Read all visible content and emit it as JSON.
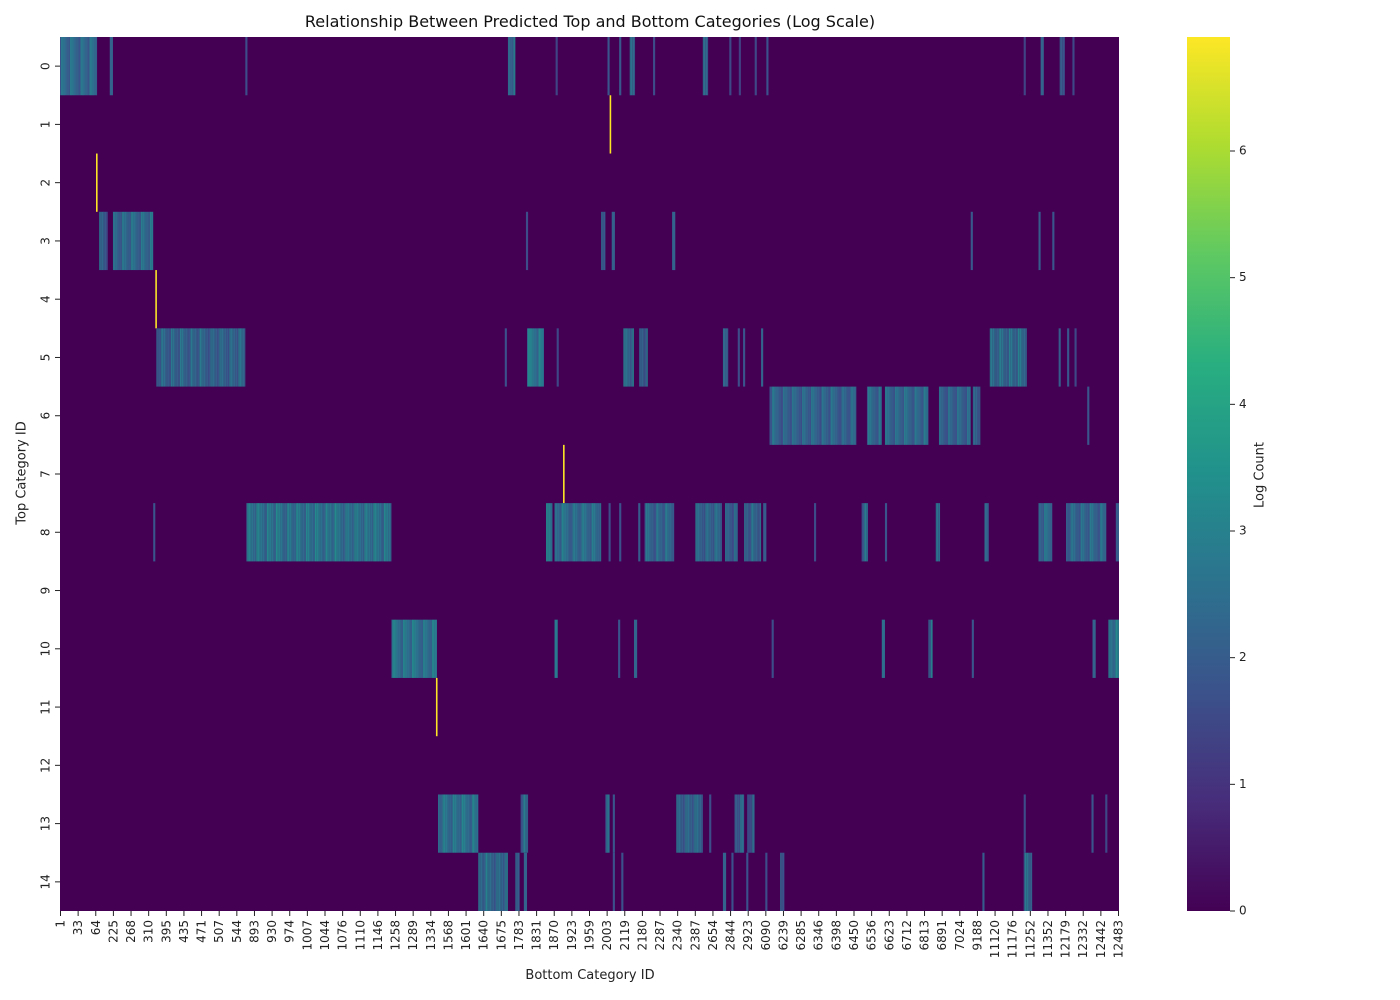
{
  "chart_data": {
    "type": "heatmap",
    "title": "Relationship Between Predicted Top and Bottom Categories (Log Scale)",
    "xlabel": "Bottom Category ID",
    "ylabel": "Top Category ID",
    "colorbar_label": "Log Count",
    "colormap": "viridis",
    "colorbar_range": [
      0,
      6.9
    ],
    "colorbar_ticks": [
      "0",
      "1",
      "2",
      "3",
      "4",
      "5",
      "6"
    ],
    "y_categories": [
      "0",
      "1",
      "2",
      "3",
      "4",
      "5",
      "6",
      "7",
      "8",
      "9",
      "10",
      "11",
      "12",
      "13",
      "14"
    ],
    "x_tick_labels": [
      "1",
      "33",
      "64",
      "225",
      "268",
      "310",
      "395",
      "435",
      "471",
      "507",
      "544",
      "893",
      "930",
      "974",
      "1007",
      "1044",
      "1076",
      "1110",
      "1146",
      "1258",
      "1289",
      "1334",
      "1568",
      "1601",
      "1640",
      "1675",
      "1783",
      "1831",
      "1870",
      "1923",
      "1959",
      "2003",
      "2119",
      "2180",
      "2287",
      "2340",
      "2387",
      "2654",
      "2844",
      "2923",
      "6090",
      "6239",
      "6285",
      "6346",
      "6398",
      "6450",
      "6536",
      "6623",
      "6712",
      "6813",
      "6891",
      "7024",
      "9188",
      "11120",
      "11176",
      "11252",
      "11352",
      "12179",
      "12332",
      "12442",
      "12483"
    ],
    "cell_value_note": "cells are log counts; background cells are 0",
    "bands": [
      {
        "row": 0,
        "x_start": 0.0,
        "x_end": 0.035,
        "value": 2.3
      },
      {
        "row": 0,
        "x_start": 0.047,
        "x_end": 0.05,
        "value": 2.2
      },
      {
        "row": 0,
        "x_start": 0.175,
        "x_end": 0.177,
        "value": 1.6
      },
      {
        "row": 0,
        "x_start": 0.423,
        "x_end": 0.43,
        "value": 2.4
      },
      {
        "row": 0,
        "x_start": 0.468,
        "x_end": 0.47,
        "value": 1.4
      },
      {
        "row": 0,
        "x_start": 0.517,
        "x_end": 0.519,
        "value": 1.8
      },
      {
        "row": 0,
        "x_start": 0.528,
        "x_end": 0.53,
        "value": 1.9
      },
      {
        "row": 0,
        "x_start": 0.538,
        "x_end": 0.543,
        "value": 2.2
      },
      {
        "row": 0,
        "x_start": 0.56,
        "x_end": 0.562,
        "value": 1.6
      },
      {
        "row": 0,
        "x_start": 0.607,
        "x_end": 0.612,
        "value": 2.5
      },
      {
        "row": 0,
        "x_start": 0.632,
        "x_end": 0.634,
        "value": 1.5
      },
      {
        "row": 0,
        "x_start": 0.641,
        "x_end": 0.643,
        "value": 1.3
      },
      {
        "row": 0,
        "x_start": 0.656,
        "x_end": 0.658,
        "value": 1.5
      },
      {
        "row": 0,
        "x_start": 0.667,
        "x_end": 0.669,
        "value": 1.7
      },
      {
        "row": 0,
        "x_start": 0.91,
        "x_end": 0.912,
        "value": 1.4
      },
      {
        "row": 0,
        "x_start": 0.926,
        "x_end": 0.929,
        "value": 2.2
      },
      {
        "row": 0,
        "x_start": 0.944,
        "x_end": 0.949,
        "value": 2.1
      },
      {
        "row": 0,
        "x_start": 0.956,
        "x_end": 0.958,
        "value": 1.5
      },
      {
        "row": 1,
        "x_start": 0.519,
        "x_end": 0.5205,
        "value": 6.9
      },
      {
        "row": 2,
        "x_start": 0.034,
        "x_end": 0.0355,
        "value": 6.9
      },
      {
        "row": 3,
        "x_start": 0.037,
        "x_end": 0.045,
        "value": 2.1
      },
      {
        "row": 3,
        "x_start": 0.05,
        "x_end": 0.088,
        "value": 2.4
      },
      {
        "row": 3,
        "x_start": 0.44,
        "x_end": 0.442,
        "value": 1.6
      },
      {
        "row": 3,
        "x_start": 0.511,
        "x_end": 0.515,
        "value": 2.3
      },
      {
        "row": 3,
        "x_start": 0.521,
        "x_end": 0.524,
        "value": 2.1
      },
      {
        "row": 3,
        "x_start": 0.578,
        "x_end": 0.581,
        "value": 2.2
      },
      {
        "row": 3,
        "x_start": 0.86,
        "x_end": 0.862,
        "value": 1.9
      },
      {
        "row": 3,
        "x_start": 0.924,
        "x_end": 0.926,
        "value": 2.0
      },
      {
        "row": 3,
        "x_start": 0.937,
        "x_end": 0.939,
        "value": 1.8
      },
      {
        "row": 4,
        "x_start": 0.09,
        "x_end": 0.0915,
        "value": 6.9
      },
      {
        "row": 5,
        "x_start": 0.091,
        "x_end": 0.175,
        "value": 2.3
      },
      {
        "row": 5,
        "x_start": 0.42,
        "x_end": 0.422,
        "value": 1.7
      },
      {
        "row": 5,
        "x_start": 0.441,
        "x_end": 0.457,
        "value": 2.7
      },
      {
        "row": 5,
        "x_start": 0.469,
        "x_end": 0.471,
        "value": 1.5
      },
      {
        "row": 5,
        "x_start": 0.532,
        "x_end": 0.542,
        "value": 2.6
      },
      {
        "row": 5,
        "x_start": 0.547,
        "x_end": 0.555,
        "value": 2.3
      },
      {
        "row": 5,
        "x_start": 0.626,
        "x_end": 0.631,
        "value": 2.5
      },
      {
        "row": 5,
        "x_start": 0.64,
        "x_end": 0.642,
        "value": 1.6
      },
      {
        "row": 5,
        "x_start": 0.645,
        "x_end": 0.647,
        "value": 1.8
      },
      {
        "row": 5,
        "x_start": 0.662,
        "x_end": 0.664,
        "value": 2.2
      },
      {
        "row": 5,
        "x_start": 0.878,
        "x_end": 0.913,
        "value": 2.5
      },
      {
        "row": 5,
        "x_start": 0.943,
        "x_end": 0.945,
        "value": 2.0
      },
      {
        "row": 5,
        "x_start": 0.951,
        "x_end": 0.953,
        "value": 1.9
      },
      {
        "row": 5,
        "x_start": 0.958,
        "x_end": 0.96,
        "value": 1.5
      },
      {
        "row": 6,
        "x_start": 0.67,
        "x_end": 0.752,
        "value": 2.2
      },
      {
        "row": 6,
        "x_start": 0.762,
        "x_end": 0.776,
        "value": 2.3
      },
      {
        "row": 6,
        "x_start": 0.779,
        "x_end": 0.82,
        "value": 2.3
      },
      {
        "row": 6,
        "x_start": 0.83,
        "x_end": 0.86,
        "value": 2.2
      },
      {
        "row": 6,
        "x_start": 0.862,
        "x_end": 0.869,
        "value": 2.4
      },
      {
        "row": 6,
        "x_start": 0.97,
        "x_end": 0.972,
        "value": 1.8
      },
      {
        "row": 7,
        "x_start": 0.475,
        "x_end": 0.4765,
        "value": 6.9
      },
      {
        "row": 8,
        "x_start": 0.088,
        "x_end": 0.09,
        "value": 1.8
      },
      {
        "row": 8,
        "x_start": 0.176,
        "x_end": 0.313,
        "value": 2.7
      },
      {
        "row": 8,
        "x_start": 0.459,
        "x_end": 0.465,
        "value": 2.8
      },
      {
        "row": 8,
        "x_start": 0.467,
        "x_end": 0.511,
        "value": 2.5
      },
      {
        "row": 8,
        "x_start": 0.518,
        "x_end": 0.52,
        "value": 1.6
      },
      {
        "row": 8,
        "x_start": 0.528,
        "x_end": 0.53,
        "value": 1.7
      },
      {
        "row": 8,
        "x_start": 0.546,
        "x_end": 0.548,
        "value": 2.0
      },
      {
        "row": 8,
        "x_start": 0.552,
        "x_end": 0.58,
        "value": 2.3
      },
      {
        "row": 8,
        "x_start": 0.6,
        "x_end": 0.625,
        "value": 2.3
      },
      {
        "row": 8,
        "x_start": 0.628,
        "x_end": 0.64,
        "value": 2.2
      },
      {
        "row": 8,
        "x_start": 0.646,
        "x_end": 0.662,
        "value": 2.3
      },
      {
        "row": 8,
        "x_start": 0.664,
        "x_end": 0.667,
        "value": 2.0
      },
      {
        "row": 8,
        "x_start": 0.712,
        "x_end": 0.714,
        "value": 1.6
      },
      {
        "row": 8,
        "x_start": 0.757,
        "x_end": 0.763,
        "value": 2.4
      },
      {
        "row": 8,
        "x_start": 0.779,
        "x_end": 0.781,
        "value": 1.8
      },
      {
        "row": 8,
        "x_start": 0.827,
        "x_end": 0.831,
        "value": 2.3
      },
      {
        "row": 8,
        "x_start": 0.873,
        "x_end": 0.877,
        "value": 2.2
      },
      {
        "row": 8,
        "x_start": 0.924,
        "x_end": 0.937,
        "value": 2.3
      },
      {
        "row": 8,
        "x_start": 0.95,
        "x_end": 0.988,
        "value": 2.3
      },
      {
        "row": 8,
        "x_start": 0.997,
        "x_end": 1.0,
        "value": 2.0
      },
      {
        "row": 10,
        "x_start": 0.313,
        "x_end": 0.356,
        "value": 2.6
      },
      {
        "row": 10,
        "x_start": 0.467,
        "x_end": 0.47,
        "value": 2.8
      },
      {
        "row": 10,
        "x_start": 0.527,
        "x_end": 0.529,
        "value": 1.8
      },
      {
        "row": 10,
        "x_start": 0.542,
        "x_end": 0.545,
        "value": 2.3
      },
      {
        "row": 10,
        "x_start": 0.672,
        "x_end": 0.674,
        "value": 1.6
      },
      {
        "row": 10,
        "x_start": 0.776,
        "x_end": 0.779,
        "value": 2.5
      },
      {
        "row": 10,
        "x_start": 0.82,
        "x_end": 0.824,
        "value": 2.5
      },
      {
        "row": 10,
        "x_start": 0.861,
        "x_end": 0.863,
        "value": 1.8
      },
      {
        "row": 10,
        "x_start": 0.975,
        "x_end": 0.978,
        "value": 2.2
      },
      {
        "row": 10,
        "x_start": 0.99,
        "x_end": 1.0,
        "value": 2.7
      },
      {
        "row": 11,
        "x_start": 0.355,
        "x_end": 0.3565,
        "value": 6.9
      },
      {
        "row": 13,
        "x_start": 0.357,
        "x_end": 0.395,
        "value": 2.6
      },
      {
        "row": 13,
        "x_start": 0.435,
        "x_end": 0.442,
        "value": 2.3
      },
      {
        "row": 13,
        "x_start": 0.515,
        "x_end": 0.519,
        "value": 2.2
      },
      {
        "row": 13,
        "x_start": 0.522,
        "x_end": 0.524,
        "value": 1.8
      },
      {
        "row": 13,
        "x_start": 0.582,
        "x_end": 0.607,
        "value": 2.4
      },
      {
        "row": 13,
        "x_start": 0.613,
        "x_end": 0.615,
        "value": 1.6
      },
      {
        "row": 13,
        "x_start": 0.637,
        "x_end": 0.646,
        "value": 2.2
      },
      {
        "row": 13,
        "x_start": 0.649,
        "x_end": 0.656,
        "value": 2.1
      },
      {
        "row": 13,
        "x_start": 0.91,
        "x_end": 0.912,
        "value": 1.6
      },
      {
        "row": 13,
        "x_start": 0.974,
        "x_end": 0.976,
        "value": 1.8
      },
      {
        "row": 13,
        "x_start": 0.987,
        "x_end": 0.989,
        "value": 1.5
      },
      {
        "row": 14,
        "x_start": 0.395,
        "x_end": 0.423,
        "value": 2.5
      },
      {
        "row": 14,
        "x_start": 0.43,
        "x_end": 0.434,
        "value": 2.3
      },
      {
        "row": 14,
        "x_start": 0.438,
        "x_end": 0.441,
        "value": 2.2
      },
      {
        "row": 14,
        "x_start": 0.522,
        "x_end": 0.524,
        "value": 1.7
      },
      {
        "row": 14,
        "x_start": 0.53,
        "x_end": 0.532,
        "value": 1.7
      },
      {
        "row": 14,
        "x_start": 0.626,
        "x_end": 0.629,
        "value": 2.2
      },
      {
        "row": 14,
        "x_start": 0.634,
        "x_end": 0.636,
        "value": 1.7
      },
      {
        "row": 14,
        "x_start": 0.648,
        "x_end": 0.65,
        "value": 1.7
      },
      {
        "row": 14,
        "x_start": 0.666,
        "x_end": 0.668,
        "value": 1.6
      },
      {
        "row": 14,
        "x_start": 0.68,
        "x_end": 0.684,
        "value": 2.3
      },
      {
        "row": 14,
        "x_start": 0.871,
        "x_end": 0.873,
        "value": 2.0
      },
      {
        "row": 14,
        "x_start": 0.91,
        "x_end": 0.918,
        "value": 2.4
      }
    ]
  }
}
